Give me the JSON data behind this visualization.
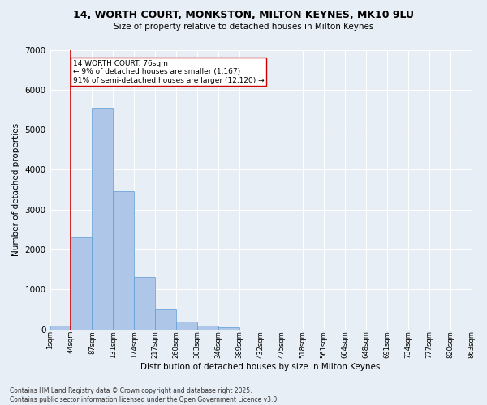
{
  "title_line1": "14, WORTH COURT, MONKSTON, MILTON KEYNES, MK10 9LU",
  "title_line2": "Size of property relative to detached houses in Milton Keynes",
  "xlabel": "Distribution of detached houses by size in Milton Keynes",
  "ylabel": "Number of detached properties",
  "bar_values": [
    100,
    2300,
    5550,
    3450,
    1300,
    500,
    200,
    100,
    60,
    0,
    0,
    0,
    0,
    0,
    0,
    0,
    0,
    0,
    0,
    0
  ],
  "bin_labels": [
    "1sqm",
    "44sqm",
    "87sqm",
    "131sqm",
    "174sqm",
    "217sqm",
    "260sqm",
    "303sqm",
    "346sqm",
    "389sqm",
    "432sqm",
    "475sqm",
    "518sqm",
    "561sqm",
    "604sqm",
    "648sqm",
    "691sqm",
    "734sqm",
    "777sqm",
    "820sqm",
    "863sqm"
  ],
  "bar_color": "#aec6e8",
  "bar_edge_color": "#5b9bd5",
  "bg_color": "#e8eef5",
  "grid_color": "#ffffff",
  "vline_x": 1,
  "vline_color": "#cc0000",
  "annotation_text": "14 WORTH COURT: 76sqm\n← 9% of detached houses are smaller (1,167)\n91% of semi-detached houses are larger (12,120) →",
  "annotation_box_color": "#ffffff",
  "annotation_box_edge": "#cc0000",
  "ylim": [
    0,
    7000
  ],
  "yticks": [
    0,
    1000,
    2000,
    3000,
    4000,
    5000,
    6000,
    7000
  ],
  "footer_line1": "Contains HM Land Registry data © Crown copyright and database right 2025.",
  "footer_line2": "Contains public sector information licensed under the Open Government Licence v3.0."
}
